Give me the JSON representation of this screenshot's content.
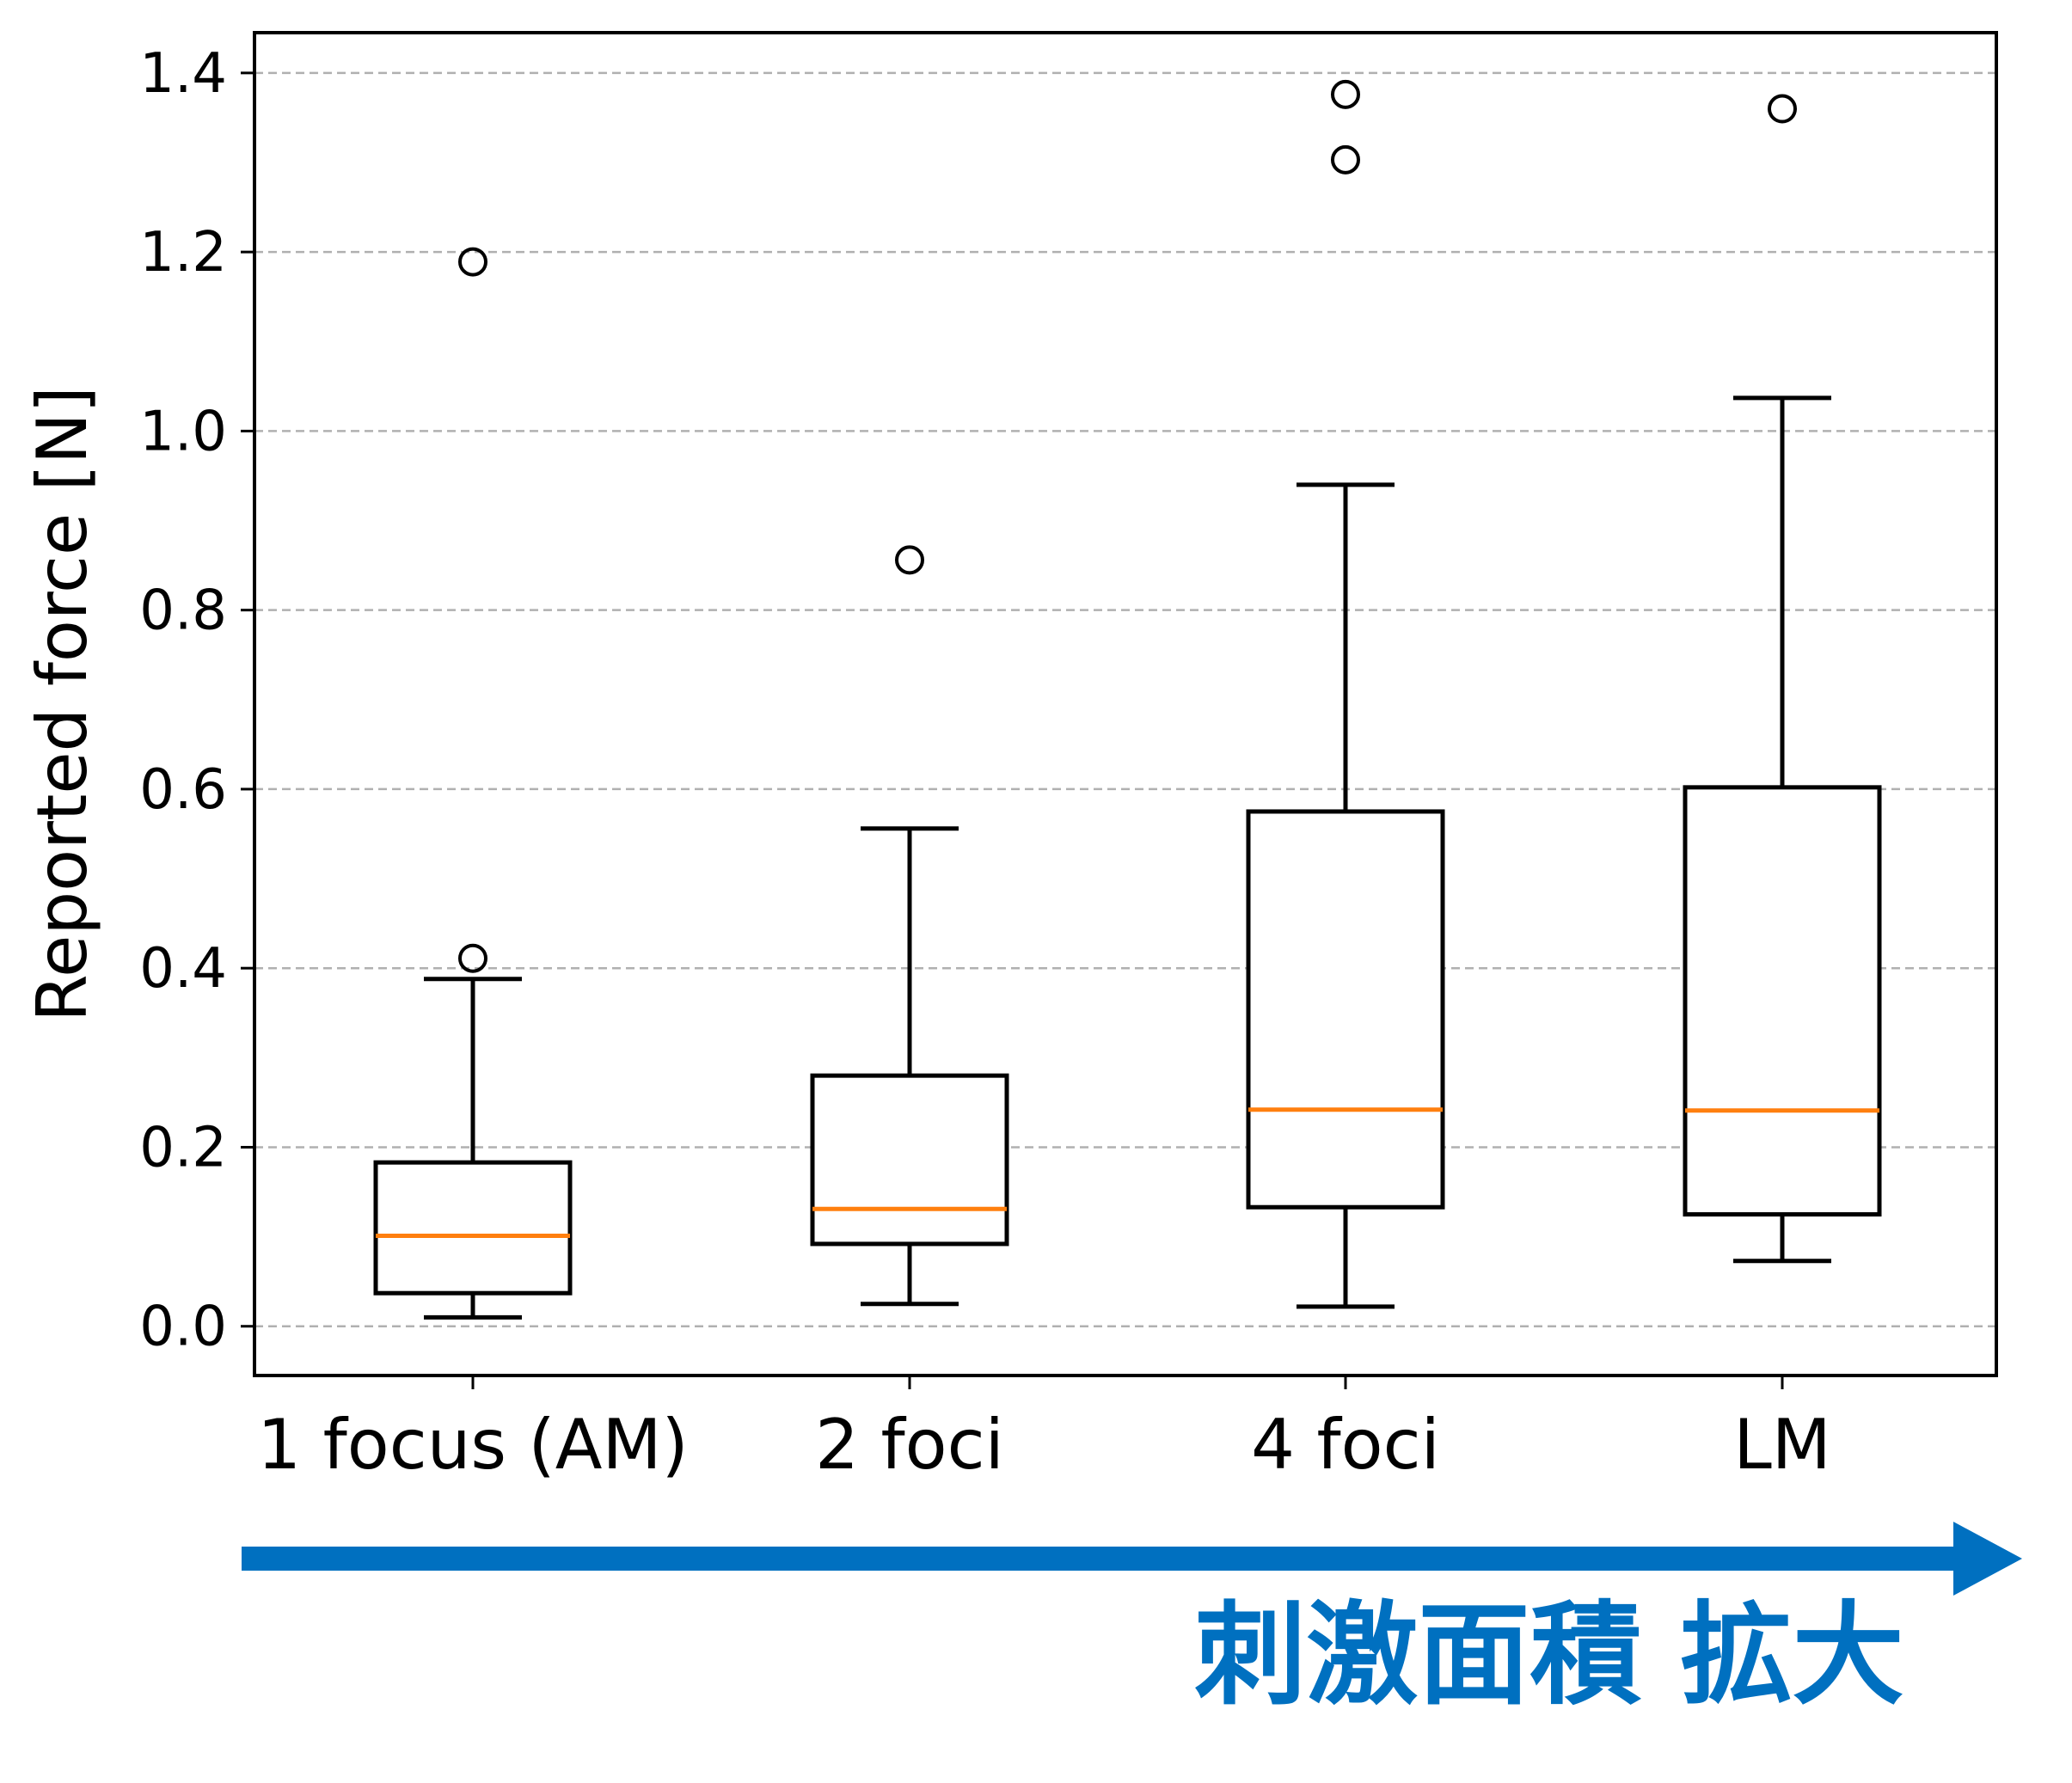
{
  "chart_data": {
    "type": "box",
    "title": "",
    "xlabel": "",
    "ylabel": "Reported force [N]",
    "ylim": [
      -0.055,
      1.445
    ],
    "yticks": [
      0.0,
      0.2,
      0.4,
      0.6,
      0.8,
      1.0,
      1.2,
      1.4
    ],
    "ytick_labels": [
      "0.0",
      "0.2",
      "0.4",
      "0.6",
      "0.8",
      "1.0",
      "1.2",
      "1.4"
    ],
    "grid": "horizontal dashed",
    "categories": [
      "1 focus (AM)",
      "2 foci",
      "4 foci",
      "LM"
    ],
    "boxes": [
      {
        "label": "1 focus (AM)",
        "whisker_low": 0.01,
        "q1": 0.037,
        "median": 0.101,
        "q3": 0.183,
        "whisker_high": 0.388,
        "outliers": [
          0.411,
          1.189
        ]
      },
      {
        "label": "2 foci",
        "whisker_low": 0.025,
        "q1": 0.092,
        "median": 0.131,
        "q3": 0.28,
        "whisker_high": 0.556,
        "outliers": [
          0.856
        ]
      },
      {
        "label": "4 foci",
        "whisker_low": 0.022,
        "q1": 0.133,
        "median": 0.242,
        "q3": 0.575,
        "whisker_high": 0.94,
        "outliers": [
          1.303,
          1.376
        ]
      },
      {
        "label": "LM",
        "whisker_low": 0.073,
        "q1": 0.125,
        "median": 0.241,
        "q3": 0.602,
        "whisker_high": 1.037,
        "outliers": [
          1.36
        ]
      }
    ]
  },
  "annotation": {
    "text": "刺激面積 拡大",
    "color": "#0070C0"
  },
  "colors": {
    "box": "#000000",
    "median": "#FF7F0E",
    "grid": "#b0b0b0",
    "arrow": "#0070C0"
  }
}
